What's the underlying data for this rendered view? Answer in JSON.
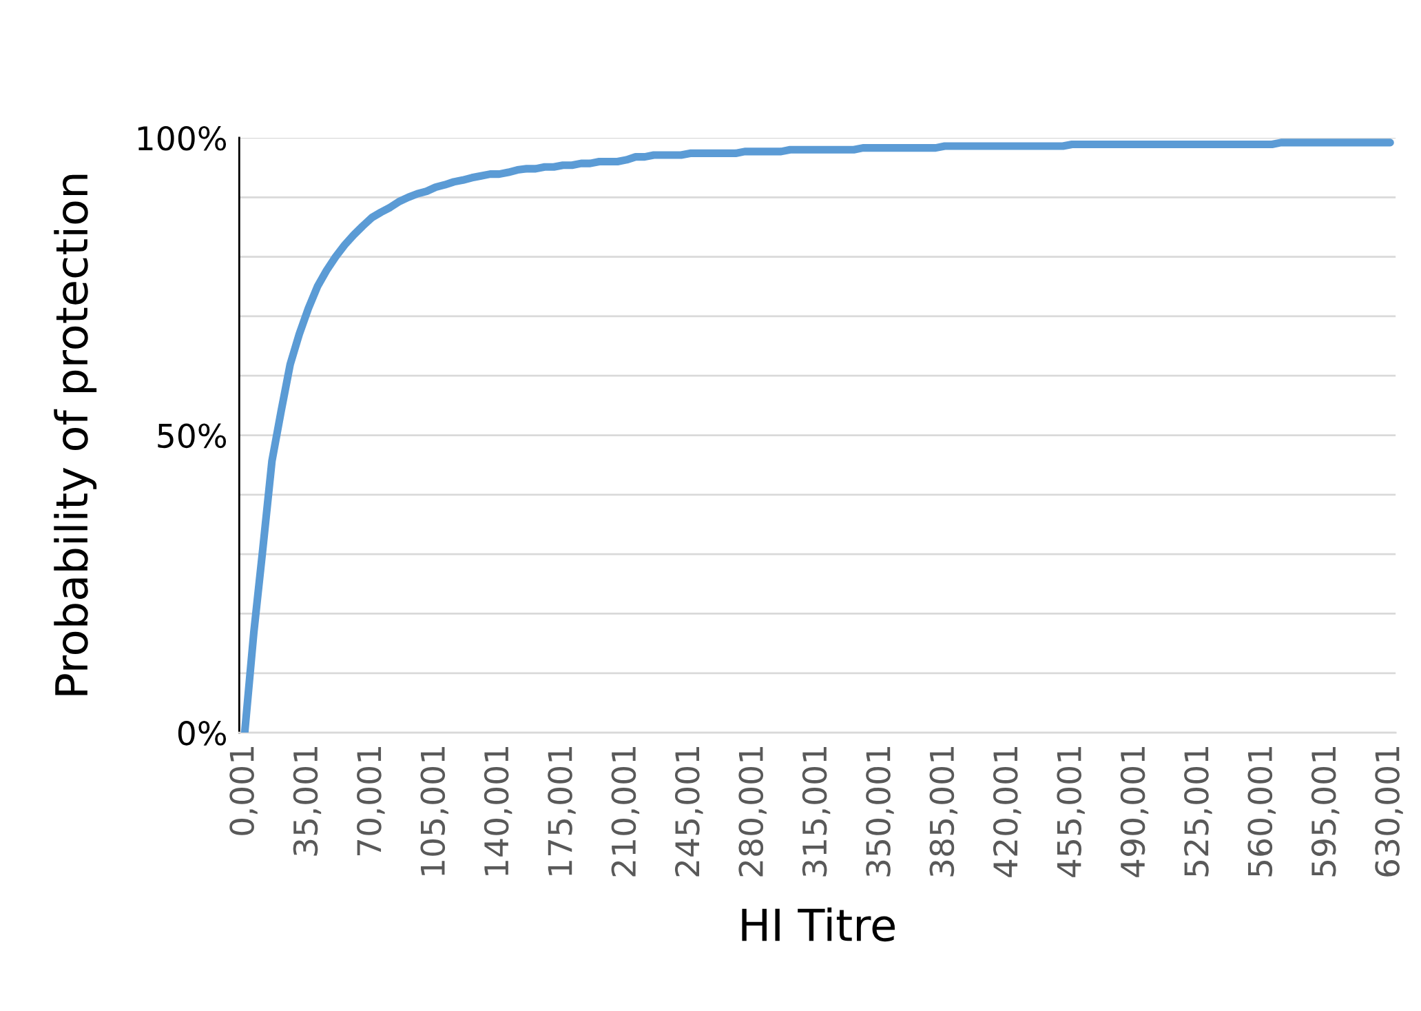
{
  "chart_data": {
    "type": "line",
    "xlabel": "HI Titre",
    "ylabel": "Probability of protection",
    "categories": [
      "0,001",
      null,
      null,
      null,
      null,
      null,
      null,
      "35,001",
      null,
      null,
      null,
      null,
      null,
      null,
      "70,001",
      null,
      null,
      null,
      null,
      null,
      null,
      "105,001",
      null,
      null,
      null,
      null,
      null,
      null,
      "140,001",
      null,
      null,
      null,
      null,
      null,
      null,
      "175,001",
      null,
      null,
      null,
      null,
      null,
      null,
      "210,001",
      null,
      null,
      null,
      null,
      null,
      null,
      "245,001",
      null,
      null,
      null,
      null,
      null,
      null,
      "280,001",
      null,
      null,
      null,
      null,
      null,
      null,
      "315,001",
      null,
      null,
      null,
      null,
      null,
      null,
      "350,001",
      null,
      null,
      null,
      null,
      null,
      null,
      "385,001",
      null,
      null,
      null,
      null,
      null,
      null,
      "420,001",
      null,
      null,
      null,
      null,
      null,
      null,
      "455,001",
      null,
      null,
      null,
      null,
      null,
      null,
      "490,001",
      null,
      null,
      null,
      null,
      null,
      null,
      "525,001",
      null,
      null,
      null,
      null,
      null,
      null,
      "560,001",
      null,
      null,
      null,
      null,
      null,
      null,
      "595,001",
      null,
      null,
      null,
      null,
      null,
      null,
      "630,001"
    ],
    "series": [
      {
        "color": "#5b9bd5",
        "values": [
          0,
          16.8,
          31,
          45.7,
          54,
          61.9,
          67,
          71.3,
          75,
          77.7,
          80,
          82,
          83.7,
          85.2,
          86.6,
          87.5,
          88.3,
          89.3,
          90,
          90.6,
          91,
          91.7,
          92.1,
          92.6,
          92.9,
          93.3,
          93.6,
          93.9,
          93.9,
          94.2,
          94.6,
          94.8,
          94.8,
          95.1,
          95.1,
          95.4,
          95.4,
          95.7,
          95.7,
          96,
          96,
          96,
          96.3,
          96.8,
          96.8,
          97.1,
          97.1,
          97.1,
          97.1,
          97.4,
          97.4,
          97.4,
          97.4,
          97.4,
          97.4,
          97.7,
          97.7,
          97.7,
          97.7,
          97.7,
          98,
          98,
          98,
          98,
          98,
          98,
          98,
          98,
          98.3,
          98.3,
          98.3,
          98.3,
          98.3,
          98.3,
          98.3,
          98.3,
          98.3,
          98.6,
          98.6,
          98.6,
          98.6,
          98.6,
          98.6,
          98.6,
          98.6,
          98.6,
          98.6,
          98.6,
          98.6,
          98.6,
          98.6,
          98.9,
          98.9,
          98.9,
          98.9,
          98.9,
          98.9,
          98.9,
          98.9,
          98.9,
          98.9,
          98.9,
          98.9,
          98.9,
          98.9,
          98.9,
          98.9,
          98.9,
          98.9,
          98.9,
          98.9,
          98.9,
          98.9,
          98.9,
          99.2,
          99.2,
          99.2,
          99.2,
          99.2,
          99.2,
          99.2,
          99.2,
          99.2,
          99.2,
          99.2,
          99.2,
          99.2
        ]
      }
    ],
    "ylim": [
      0,
      100
    ],
    "yticks": [
      {
        "value": 0,
        "label": "0%"
      },
      {
        "value": 10,
        "label": null
      },
      {
        "value": 20,
        "label": null
      },
      {
        "value": 30,
        "label": null
      },
      {
        "value": 40,
        "label": null
      },
      {
        "value": 50,
        "label": "50%"
      },
      {
        "value": 60,
        "label": null
      },
      {
        "value": 70,
        "label": null
      },
      {
        "value": 80,
        "label": null
      },
      {
        "value": 90,
        "label": null
      },
      {
        "value": 100,
        "label": "100%"
      }
    ],
    "grid": "y",
    "line_style": "solid"
  }
}
